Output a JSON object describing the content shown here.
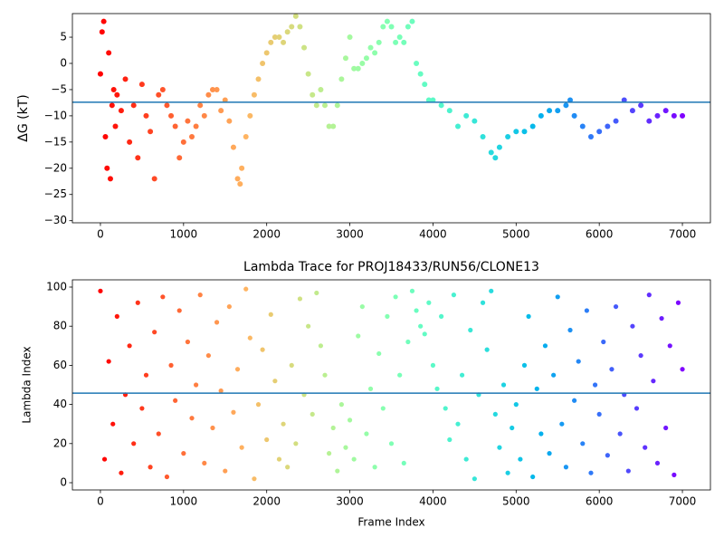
{
  "chart_data": [
    {
      "type": "scatter",
      "ylabel": "ΔG (kT)",
      "colormap": "rainbow_r",
      "hline": -7.4,
      "hline_color": "#1f77b4",
      "xlim": [
        -337,
        7337
      ],
      "ylim": [
        -30.4,
        9.5
      ],
      "xticks": [
        0,
        1000,
        2000,
        3000,
        4000,
        5000,
        6000,
        7000
      ],
      "yticks": [
        {
          "value": -30,
          "label": "−30"
        },
        {
          "value": -25,
          "label": "−25"
        },
        {
          "value": -20,
          "label": "−20"
        },
        {
          "value": -15,
          "label": "−15"
        },
        {
          "value": -10,
          "label": "−10"
        },
        {
          "value": -5,
          "label": "−5"
        },
        0,
        5
      ],
      "x": [
        0,
        20,
        40,
        60,
        80,
        100,
        120,
        140,
        160,
        180,
        200,
        250,
        300,
        350,
        400,
        450,
        500,
        550,
        600,
        650,
        700,
        750,
        800,
        850,
        900,
        950,
        1000,
        1050,
        1100,
        1150,
        1200,
        1250,
        1300,
        1350,
        1400,
        1450,
        1500,
        1550,
        1600,
        1650,
        1680,
        1700,
        1750,
        1800,
        1850,
        1900,
        1950,
        2000,
        2050,
        2100,
        2150,
        2200,
        2250,
        2300,
        2350,
        2400,
        2450,
        2500,
        2550,
        2600,
        2650,
        2700,
        2750,
        2800,
        2850,
        2900,
        2950,
        3000,
        3050,
        3100,
        3150,
        3200,
        3250,
        3300,
        3350,
        3400,
        3450,
        3500,
        3550,
        3600,
        3650,
        3700,
        3750,
        3800,
        3850,
        3900,
        3950,
        4000,
        4100,
        4200,
        4300,
        4400,
        4500,
        4600,
        4700,
        4750,
        4800,
        4900,
        5000,
        5100,
        5200,
        5300,
        5400,
        5500,
        5600,
        5650,
        5700,
        5800,
        5900,
        6000,
        6100,
        6200,
        6300,
        6400,
        6500,
        6600,
        6700,
        6800,
        6900,
        7000
      ],
      "values": [
        -2,
        6,
        8,
        -14,
        -20,
        2,
        -22,
        -8,
        -5,
        -12,
        -6,
        -9,
        -3,
        -15,
        -8,
        -18,
        -4,
        -10,
        -13,
        -22,
        -6,
        -5,
        -8,
        -10,
        -12,
        -18,
        -15,
        -11,
        -14,
        -12,
        -8,
        -10,
        -6,
        -5,
        -5,
        -9,
        -7,
        -11,
        -16,
        -22,
        -23,
        -20,
        -14,
        -10,
        -6,
        -3,
        0,
        2,
        4,
        5,
        5,
        4,
        6,
        7,
        9,
        7,
        3,
        -2,
        -6,
        -8,
        -5,
        -8,
        -12,
        -12,
        -8,
        -3,
        1,
        5,
        -1,
        -1,
        0,
        1,
        3,
        2,
        4,
        7,
        8,
        7,
        4,
        5,
        4,
        7,
        8,
        0,
        -2,
        -4,
        -7,
        -7,
        -8,
        -9,
        -12,
        -10,
        -11,
        -14,
        -17,
        -18,
        -16,
        -14,
        -13,
        -13,
        -12,
        -10,
        -9,
        -9,
        -8,
        -7,
        -10,
        -12,
        -14,
        -13,
        -12,
        -11,
        -7,
        -9,
        -8,
        -11,
        -10,
        -9,
        -10,
        -10
      ]
    },
    {
      "type": "scatter",
      "title": "Lambda Trace for PROJ18433/RUN56/CLONE13",
      "xlabel": "Frame Index",
      "ylabel": "Lambda Index",
      "colormap": "rainbow_r",
      "hline": 45.8,
      "hline_color": "#1f77b4",
      "xlim": [
        -337,
        7337
      ],
      "ylim": [
        -3.7,
        103.7
      ],
      "xticks": [
        0,
        1000,
        2000,
        3000,
        4000,
        5000,
        6000,
        7000
      ],
      "yticks": [
        0,
        20,
        40,
        60,
        80,
        100
      ],
      "x": [
        0,
        50,
        100,
        150,
        200,
        250,
        300,
        350,
        400,
        450,
        500,
        550,
        600,
        650,
        700,
        750,
        800,
        850,
        900,
        950,
        1000,
        1050,
        1100,
        1150,
        1200,
        1250,
        1300,
        1350,
        1400,
        1450,
        1500,
        1550,
        1600,
        1650,
        1700,
        1750,
        1800,
        1850,
        1900,
        1950,
        2000,
        2050,
        2100,
        2150,
        2200,
        2250,
        2300,
        2350,
        2400,
        2450,
        2500,
        2550,
        2600,
        2650,
        2700,
        2750,
        2800,
        2850,
        2900,
        2950,
        3000,
        3050,
        3100,
        3150,
        3200,
        3250,
        3300,
        3350,
        3400,
        3450,
        3500,
        3550,
        3600,
        3650,
        3700,
        3750,
        3800,
        3850,
        3900,
        3950,
        4000,
        4050,
        4100,
        4150,
        4200,
        4250,
        4300,
        4350,
        4400,
        4450,
        4500,
        4550,
        4600,
        4650,
        4700,
        4750,
        4800,
        4850,
        4900,
        4950,
        5000,
        5050,
        5100,
        5150,
        5200,
        5250,
        5300,
        5350,
        5400,
        5450,
        5500,
        5550,
        5600,
        5650,
        5700,
        5750,
        5800,
        5850,
        5900,
        5950,
        6000,
        6050,
        6100,
        6150,
        6200,
        6250,
        6300,
        6350,
        6400,
        6450,
        6500,
        6550,
        6600,
        6650,
        6700,
        6750,
        6800,
        6850,
        6900,
        6950,
        7000
      ],
      "values": [
        98,
        12,
        62,
        30,
        85,
        5,
        45,
        70,
        20,
        92,
        38,
        55,
        8,
        77,
        25,
        95,
        3,
        60,
        42,
        88,
        15,
        72,
        33,
        50,
        96,
        10,
        65,
        28,
        82,
        47,
        6,
        90,
        36,
        58,
        18,
        99,
        74,
        2,
        40,
        68,
        22,
        86,
        52,
        12,
        30,
        8,
        60,
        20,
        94,
        45,
        80,
        35,
        97,
        70,
        55,
        15,
        28,
        6,
        40,
        18,
        32,
        12,
        75,
        90,
        25,
        48,
        8,
        66,
        38,
        85,
        20,
        95,
        55,
        10,
        72,
        98,
        88,
        80,
        76,
        92,
        60,
        48,
        85,
        38,
        22,
        96,
        30,
        55,
        12,
        78,
        2,
        45,
        92,
        68,
        98,
        35,
        18,
        50,
        5,
        28,
        40,
        12,
        60,
        85,
        3,
        48,
        25,
        70,
        15,
        55,
        95,
        30,
        8,
        78,
        42,
        62,
        20,
        88,
        5,
        50,
        35,
        72,
        14,
        58,
        90,
        25,
        45,
        6,
        80,
        38,
        65,
        18,
        96,
        52,
        10,
        84,
        28,
        70,
        4,
        92,
        58
      ]
    }
  ]
}
